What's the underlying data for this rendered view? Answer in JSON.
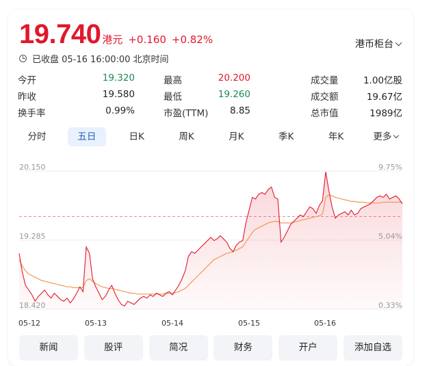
{
  "quote": {
    "price": "19.740",
    "currency": "港元",
    "change": "+0.160",
    "change_pct": "+0.82%",
    "exchange_selector": "港币柜台",
    "status": "已收盘 05-16 16:00:00 北京时间"
  },
  "stats": [
    [
      {
        "label": "今开",
        "value": "19.320",
        "tone": "down"
      },
      {
        "label": "最高",
        "value": "20.200",
        "tone": "up"
      },
      {
        "label": "成交量",
        "value": "1.00亿股",
        "tone": ""
      }
    ],
    [
      {
        "label": "昨收",
        "value": "19.580",
        "tone": ""
      },
      {
        "label": "最低",
        "value": "19.260",
        "tone": "down"
      },
      {
        "label": "成交额",
        "value": "19.67亿",
        "tone": ""
      }
    ],
    [
      {
        "label": "换手率",
        "value": "0.99%",
        "tone": ""
      },
      {
        "label": "市盈(TTM)",
        "value": "8.85",
        "tone": ""
      },
      {
        "label": "总市值",
        "value": "1989亿",
        "tone": ""
      }
    ]
  ],
  "tabs": [
    {
      "label": "分时",
      "active": false
    },
    {
      "label": "五日",
      "active": true
    },
    {
      "label": "日K",
      "active": false
    },
    {
      "label": "周K",
      "active": false
    },
    {
      "label": "月K",
      "active": false
    },
    {
      "label": "季K",
      "active": false
    },
    {
      "label": "年K",
      "active": false
    },
    {
      "label": "更多",
      "active": false,
      "dropdown": true
    }
  ],
  "chart_data": {
    "type": "line",
    "y_ticks_left": [
      "20.150",
      "19.285",
      "18.420"
    ],
    "y_ticks_right": [
      "9.75%",
      "5.04%",
      "0.33%"
    ],
    "x_ticks": [
      "05-12",
      "05-13",
      "05-14",
      "05-15",
      "05-16"
    ],
    "ylim": [
      18.42,
      20.15
    ],
    "prev_close": 19.58,
    "series": [
      {
        "values": [
          19.12,
          18.88,
          18.72,
          18.66,
          18.6,
          18.52,
          18.58,
          18.62,
          18.66,
          18.6,
          18.56,
          18.62,
          18.58,
          18.54,
          18.52,
          18.56,
          18.5,
          18.55,
          18.62,
          18.7,
          18.64,
          19.2,
          19.12,
          18.8,
          18.7,
          18.62,
          18.54,
          18.58,
          18.66,
          18.72,
          18.62,
          18.54,
          18.48,
          18.46,
          18.52,
          18.5,
          18.48,
          18.52,
          18.56,
          18.58,
          18.56,
          18.6,
          18.58,
          18.62,
          18.6,
          18.58,
          18.62,
          18.64,
          18.6,
          18.66,
          18.72,
          18.8,
          18.9,
          19.08,
          19.14,
          19.12,
          19.16,
          19.2,
          19.24,
          19.28,
          19.32,
          19.28,
          19.3,
          19.34,
          19.3,
          19.26,
          19.18,
          19.14,
          19.22,
          19.26,
          19.28,
          19.5,
          19.66,
          19.82,
          19.8,
          19.86,
          19.88,
          19.86,
          19.92,
          19.95,
          19.82,
          19.8,
          19.26,
          19.32,
          19.4,
          19.48,
          19.52,
          19.56,
          19.6,
          19.58,
          19.64,
          19.7,
          19.68,
          19.62,
          19.72,
          19.78,
          20.14,
          19.9,
          19.7,
          19.56,
          19.6,
          19.62,
          19.64,
          19.6,
          19.66,
          19.6,
          19.62,
          19.68,
          19.7,
          19.72,
          19.74,
          19.78,
          19.82,
          19.84,
          19.82,
          19.86,
          19.8,
          19.82,
          19.84,
          19.8,
          19.74
        ],
        "color": "#e0182c"
      },
      {
        "values": [
          19.04,
          18.96,
          18.9,
          18.86,
          18.84,
          18.82,
          18.8,
          18.78,
          18.77,
          18.76,
          18.75,
          18.74,
          18.73,
          18.72,
          18.71,
          18.7,
          18.7,
          18.69,
          18.69,
          18.69,
          18.69,
          18.78,
          18.8,
          18.77,
          18.74,
          18.72,
          18.7,
          18.69,
          18.68,
          18.68,
          18.67,
          18.66,
          18.65,
          18.64,
          18.63,
          18.62,
          18.62,
          18.61,
          18.61,
          18.61,
          18.61,
          18.61,
          18.61,
          18.61,
          18.61,
          18.61,
          18.62,
          18.62,
          18.62,
          18.63,
          18.64,
          18.66,
          18.68,
          18.72,
          18.76,
          18.8,
          18.84,
          18.88,
          18.92,
          18.96,
          19.0,
          19.04,
          19.06,
          19.08,
          19.1,
          19.12,
          19.13,
          19.14,
          19.16,
          19.18,
          19.2,
          19.26,
          19.32,
          19.38,
          19.42,
          19.44,
          19.46,
          19.48,
          19.5,
          19.51,
          19.52,
          19.52,
          19.5,
          19.5,
          19.5,
          19.5,
          19.51,
          19.52,
          19.53,
          19.54,
          19.55,
          19.56,
          19.57,
          19.58,
          19.59,
          19.61,
          19.82,
          19.85,
          19.84,
          19.82,
          19.81,
          19.8,
          19.79,
          19.78,
          19.77,
          19.77,
          19.76,
          19.76,
          19.76,
          19.75,
          19.75,
          19.75,
          19.75,
          19.75,
          19.76,
          19.76,
          19.76,
          19.76,
          19.76,
          19.76,
          19.76
        ],
        "color": "#ef9a50"
      }
    ]
  },
  "buttons": [
    "新闻",
    "股评",
    "简况",
    "财务",
    "开户",
    "添加自选"
  ]
}
